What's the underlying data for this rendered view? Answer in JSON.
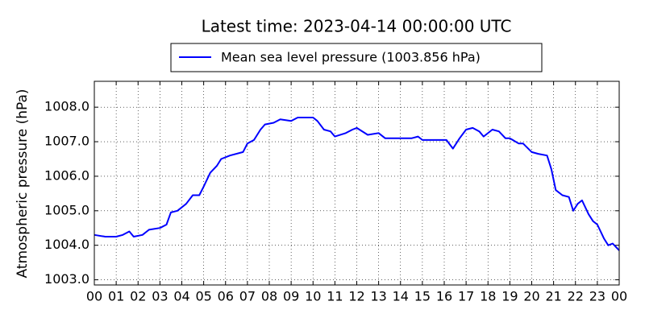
{
  "chart_data": {
    "type": "line",
    "title": "Latest time: 2023-04-14 00:00:00 UTC",
    "y_label": "Atmospheric pressure (hPa)",
    "x": [
      0,
      0.5,
      1,
      1.3,
      1.6,
      1.8,
      2.2,
      2.5,
      3,
      3.3,
      3.5,
      3.8,
      4.2,
      4.5,
      4.8,
      5.0,
      5.3,
      5.6,
      5.8,
      6.2,
      6.8,
      7.0,
      7.3,
      7.6,
      7.8,
      8.2,
      8.5,
      9.0,
      9.3,
      9.6,
      10.0,
      10.2,
      10.5,
      10.8,
      11.0,
      11.5,
      11.8,
      12.0,
      12.5,
      13.0,
      13.3,
      14.0,
      14.5,
      14.8,
      15.0,
      15.5,
      15.8,
      16.1,
      16.4,
      16.7,
      17.0,
      17.3,
      17.6,
      17.8,
      18.2,
      18.5,
      18.8,
      19.0,
      19.4,
      19.6,
      20.0,
      20.3,
      20.7,
      20.9,
      21.1,
      21.4,
      21.7,
      21.9,
      22.1,
      22.3,
      22.6,
      22.8,
      23.0,
      23.3,
      23.5,
      23.7,
      24
    ],
    "series": [
      {
        "name": "Mean sea level pressure (1003.856 hPa)",
        "color": "#0000ff",
        "values": [
          1004.3,
          1004.25,
          1004.25,
          1004.3,
          1004.4,
          1004.25,
          1004.3,
          1004.45,
          1004.5,
          1004.6,
          1004.95,
          1005.0,
          1005.2,
          1005.45,
          1005.45,
          1005.7,
          1006.1,
          1006.3,
          1006.5,
          1006.6,
          1006.7,
          1006.95,
          1007.05,
          1007.35,
          1007.5,
          1007.55,
          1007.65,
          1007.6,
          1007.7,
          1007.7,
          1007.7,
          1007.6,
          1007.35,
          1007.3,
          1007.15,
          1007.25,
          1007.35,
          1007.4,
          1007.2,
          1007.25,
          1007.1,
          1007.1,
          1007.1,
          1007.15,
          1007.05,
          1007.05,
          1007.05,
          1007.05,
          1006.8,
          1007.1,
          1007.35,
          1007.4,
          1007.3,
          1007.15,
          1007.35,
          1007.3,
          1007.1,
          1007.1,
          1006.95,
          1006.95,
          1006.7,
          1006.65,
          1006.6,
          1006.2,
          1005.6,
          1005.45,
          1005.4,
          1005.0,
          1005.2,
          1005.3,
          1004.9,
          1004.7,
          1004.6,
          1004.2,
          1004.0,
          1004.05,
          1003.85
        ]
      }
    ],
    "xlim": [
      0,
      24
    ],
    "xticks": [
      {
        "value": 0,
        "label": "00"
      },
      {
        "value": 1,
        "label": "01"
      },
      {
        "value": 2,
        "label": "02"
      },
      {
        "value": 3,
        "label": "03"
      },
      {
        "value": 4,
        "label": "04"
      },
      {
        "value": 5,
        "label": "05"
      },
      {
        "value": 6,
        "label": "06"
      },
      {
        "value": 7,
        "label": "07"
      },
      {
        "value": 8,
        "label": "08"
      },
      {
        "value": 9,
        "label": "09"
      },
      {
        "value": 10,
        "label": "10"
      },
      {
        "value": 11,
        "label": "11"
      },
      {
        "value": 12,
        "label": "12"
      },
      {
        "value": 13,
        "label": "13"
      },
      {
        "value": 14,
        "label": "14"
      },
      {
        "value": 15,
        "label": "15"
      },
      {
        "value": 16,
        "label": "16"
      },
      {
        "value": 17,
        "label": "17"
      },
      {
        "value": 18,
        "label": "18"
      },
      {
        "value": 19,
        "label": "19"
      },
      {
        "value": 20,
        "label": "20"
      },
      {
        "value": 21,
        "label": "21"
      },
      {
        "value": 22,
        "label": "22"
      },
      {
        "value": 23,
        "label": "23"
      },
      {
        "value": 24,
        "label": "00"
      }
    ],
    "ylim": [
      1002.85,
      1008.75
    ],
    "yticks": [
      {
        "value": 1003,
        "label": "1003.0"
      },
      {
        "value": 1004,
        "label": "1004.0"
      },
      {
        "value": 1005,
        "label": "1005.0"
      },
      {
        "value": 1006,
        "label": "1006.0"
      },
      {
        "value": 1007,
        "label": "1007.0"
      },
      {
        "value": 1008,
        "label": "1008.0"
      }
    ],
    "grid": true
  }
}
